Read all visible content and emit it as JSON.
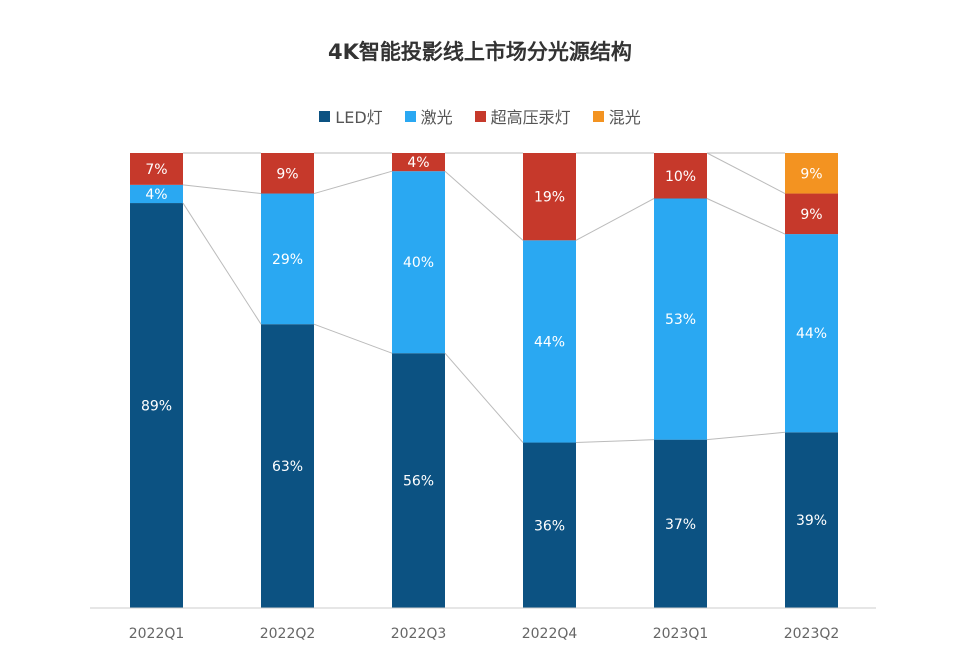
{
  "chart_data": {
    "type": "bar",
    "stacked": true,
    "title": "4K智能投影线上市场分光源结构",
    "categories": [
      "2022Q1",
      "2022Q2",
      "2022Q3",
      "2022Q4",
      "2023Q1",
      "2023Q2"
    ],
    "series": [
      {
        "name": "LED灯",
        "color": "#0c5282",
        "values": [
          89,
          63,
          56,
          36,
          37,
          39
        ]
      },
      {
        "name": "激光",
        "color": "#2aa8f2",
        "values": [
          4,
          29,
          40,
          44,
          53,
          44
        ]
      },
      {
        "name": "超高压汞灯",
        "color": "#c6392b",
        "values": [
          7,
          9,
          4,
          19,
          10,
          9
        ]
      },
      {
        "name": "混光",
        "color": "#f39321",
        "values": [
          0,
          0,
          0,
          0,
          0,
          9
        ]
      }
    ],
    "value_suffix": "%",
    "legend": "top",
    "grid": false,
    "connector_lines": true
  }
}
